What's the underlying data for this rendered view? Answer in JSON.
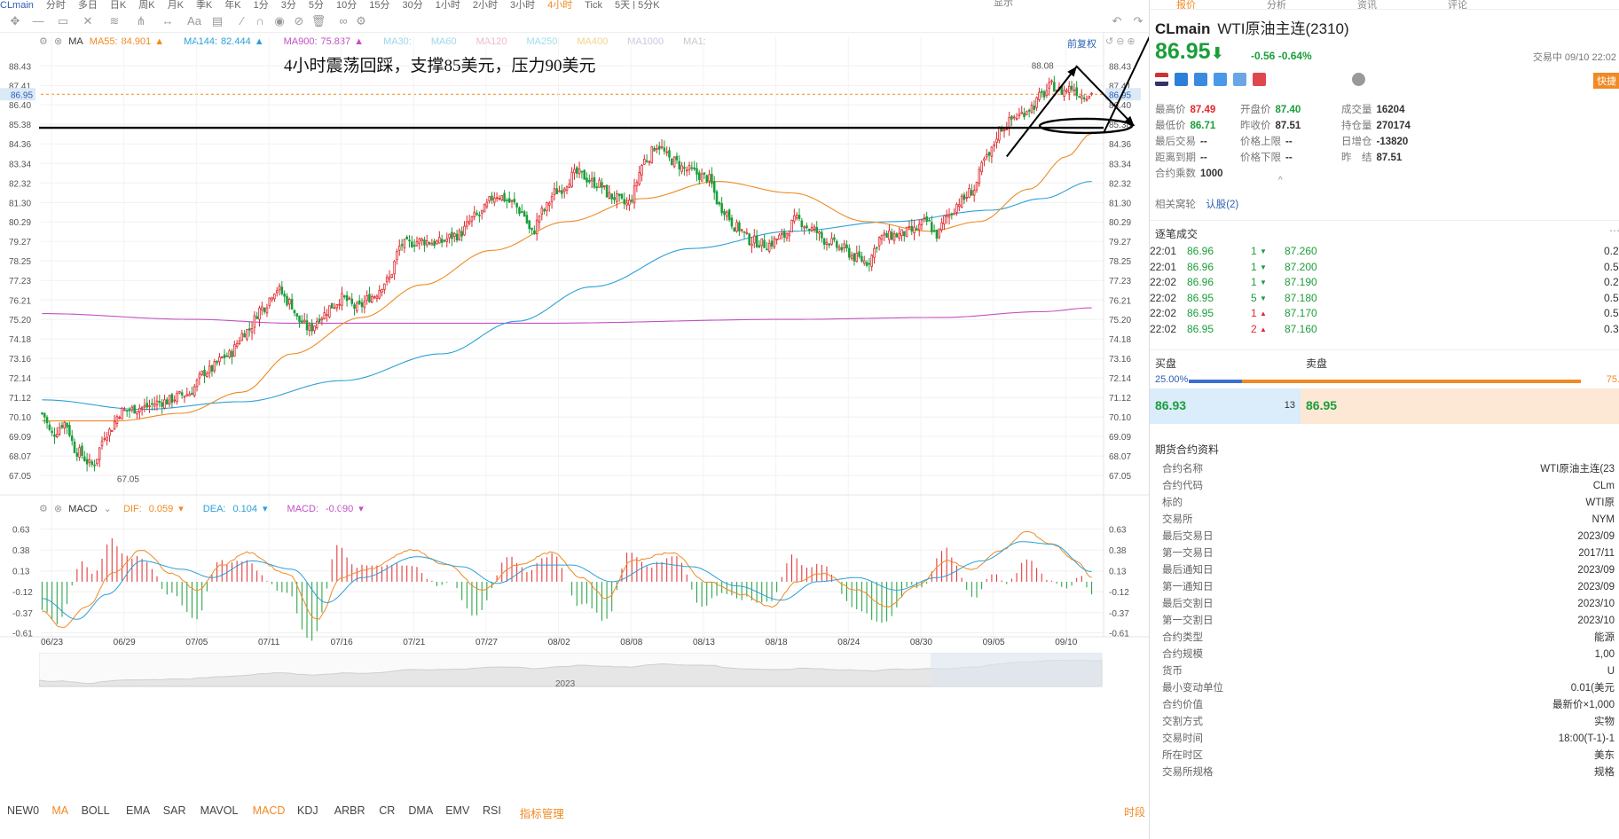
{
  "top_tabs": [
    "CLmain",
    "分时",
    "多日",
    "日K",
    "周K",
    "月K",
    "季K",
    "年K",
    "1分",
    "3分",
    "5分",
    "10分",
    "15分",
    "30分",
    "1小时",
    "2小时",
    "3小时",
    "4小时",
    "Tick",
    "5天 | 5分K"
  ],
  "top_active": "4小时",
  "display_label": "显示",
  "right_tabs": [
    "报价",
    "分析",
    "资讯",
    "评论"
  ],
  "annotation_text": "4小时震荡回踩，支撑85美元，压力90美元",
  "restore_label": "前复权",
  "ma_legend": {
    "name": "MA",
    "items": [
      {
        "label": "MA55:",
        "value": "84.901",
        "arrow": "▲",
        "color": "#f08a24"
      },
      {
        "label": "MA144:",
        "value": "82.444",
        "arrow": "▲",
        "color": "#2ba0d8"
      },
      {
        "label": "MA900:",
        "value": "75.837",
        "arrow": "▲",
        "color": "#c450c4"
      },
      {
        "label": "MA30:",
        "value": "",
        "arrow": "",
        "color": "#9fd6ec"
      },
      {
        "label": "MA60",
        "value": "",
        "arrow": "",
        "color": "#9fd6ec"
      },
      {
        "label": "MA120",
        "value": "",
        "arrow": "",
        "color": "#f0b6d0"
      },
      {
        "label": "MA250",
        "value": "",
        "arrow": "",
        "color": "#9fe0ec"
      },
      {
        "label": "MA400",
        "value": "",
        "arrow": "",
        "color": "#f6d28a"
      },
      {
        "label": "MA1000",
        "value": "",
        "arrow": "",
        "color": "#c8c8e0"
      },
      {
        "label": "MA1:",
        "value": "",
        "arrow": "",
        "color": "#c8c8c8"
      }
    ]
  },
  "macd_legend": {
    "name": "MACD",
    "items": [
      {
        "label": "DIF:",
        "value": "0.059",
        "color": "#f08a24"
      },
      {
        "label": "DEA:",
        "value": "0.104",
        "color": "#2ba0d8"
      },
      {
        "label": "MACD:",
        "value": "-0.090",
        "color": "#c450c4"
      }
    ]
  },
  "colors": {
    "up": "#e0282e",
    "down": "#1a9e3a",
    "ma55": "#f08a24",
    "ma144": "#2ba0d8",
    "ma900": "#c450c4"
  },
  "chart_data": [
    {
      "type": "candlestick",
      "title": "",
      "ylim": [
        66.5,
        89.0
      ],
      "y_ticks": [
        "88.43",
        "87.41",
        "86.40",
        "85.38",
        "84.36",
        "83.34",
        "82.32",
        "81.30",
        "80.29",
        "79.27",
        "78.25",
        "77.23",
        "76.21",
        "75.20",
        "74.18",
        "73.16",
        "72.14",
        "71.12",
        "70.10",
        "69.09",
        "68.07",
        "67.05"
      ],
      "current_price_tag": "86.95",
      "x_ticks": [
        "06/23",
        "06/29",
        "07/05",
        "07/11",
        "07/16",
        "07/21",
        "07/27",
        "08/02",
        "08/08",
        "08/13",
        "08/18",
        "08/24",
        "08/30",
        "09/05",
        "09/10"
      ],
      "close_anchors": [
        [
          0,
          70.3
        ],
        [
          4,
          69.2
        ],
        [
          9,
          69.8
        ],
        [
          14,
          68.3
        ],
        [
          20,
          67.6
        ],
        [
          26,
          69.3
        ],
        [
          32,
          70.4
        ],
        [
          40,
          70.6
        ],
        [
          48,
          70.9
        ],
        [
          58,
          71.3
        ],
        [
          66,
          72.5
        ],
        [
          74,
          73.3
        ],
        [
          82,
          74.6
        ],
        [
          88,
          75.8
        ],
        [
          94,
          76.8
        ],
        [
          99,
          76.1
        ],
        [
          103,
          75.1
        ],
        [
          107,
          74.7
        ],
        [
          112,
          75.4
        ],
        [
          116,
          75.9
        ],
        [
          120,
          76.3
        ],
        [
          126,
          75.8
        ],
        [
          132,
          76.4
        ],
        [
          138,
          77.2
        ],
        [
          144,
          79.1
        ],
        [
          152,
          79.3
        ],
        [
          158,
          79.2
        ],
        [
          166,
          79.6
        ],
        [
          174,
          80.6
        ],
        [
          182,
          81.7
        ],
        [
          188,
          81.3
        ],
        [
          192,
          80.8
        ],
        [
          196,
          79.7
        ],
        [
          200,
          80.8
        ],
        [
          206,
          81.9
        ],
        [
          214,
          82.8
        ],
        [
          222,
          82.3
        ],
        [
          228,
          81.6
        ],
        [
          234,
          81.2
        ],
        [
          242,
          83.6
        ],
        [
          246,
          84.3
        ],
        [
          252,
          83.5
        ],
        [
          258,
          83.0
        ],
        [
          266,
          82.6
        ],
        [
          272,
          81.0
        ],
        [
          278,
          80.0
        ],
        [
          284,
          79.3
        ],
        [
          290,
          79.1
        ],
        [
          296,
          79.5
        ],
        [
          302,
          80.4
        ],
        [
          308,
          79.9
        ],
        [
          314,
          79.3
        ],
        [
          320,
          78.9
        ],
        [
          326,
          78.4
        ],
        [
          330,
          78.2
        ],
        [
          336,
          79.5
        ],
        [
          342,
          79.6
        ],
        [
          348,
          79.8
        ],
        [
          354,
          80.3
        ],
        [
          358,
          79.6
        ],
        [
          362,
          80.6
        ],
        [
          368,
          81.4
        ],
        [
          372,
          81.9
        ],
        [
          378,
          83.6
        ],
        [
          384,
          85.2
        ],
        [
          390,
          85.8
        ],
        [
          396,
          86.3
        ],
        [
          400,
          86.9
        ],
        [
          404,
          87.4
        ],
        [
          408,
          87.1
        ],
        [
          412,
          87.3
        ],
        [
          416,
          86.9
        ],
        [
          420,
          87.0
        ]
      ],
      "candle_count": 421,
      "high_label": "88.08",
      "low_label": "67.05",
      "ma_series": [
        {
          "name": "MA55",
          "key": "ma55",
          "anchors": [
            [
              0,
              69.9
            ],
            [
              30,
              69.9
            ],
            [
              56,
              70.3
            ],
            [
              80,
              71.4
            ],
            [
              100,
              73.4
            ],
            [
              128,
              75.3
            ],
            [
              152,
              77.0
            ],
            [
              180,
              78.8
            ],
            [
              210,
              80.3
            ],
            [
              240,
              81.5
            ],
            [
              270,
              82.4
            ],
            [
              300,
              81.8
            ],
            [
              330,
              80.3
            ],
            [
              355,
              79.8
            ],
            [
              375,
              80.3
            ],
            [
              395,
              82.0
            ],
            [
              410,
              83.7
            ],
            [
              420,
              84.9
            ]
          ]
        },
        {
          "name": "MA144",
          "key": "ma144",
          "anchors": [
            [
              0,
              71.0
            ],
            [
              40,
              70.5
            ],
            [
              80,
              70.9
            ],
            [
              120,
              72.0
            ],
            [
              160,
              73.4
            ],
            [
              190,
              75.1
            ],
            [
              220,
              76.9
            ],
            [
              260,
              78.9
            ],
            [
              300,
              79.8
            ],
            [
              340,
              80.3
            ],
            [
              380,
              80.9
            ],
            [
              400,
              81.5
            ],
            [
              420,
              82.4
            ]
          ]
        },
        {
          "name": "MA900",
          "key": "ma900",
          "anchors": [
            [
              0,
              75.5
            ],
            [
              60,
              75.2
            ],
            [
              100,
              75.0
            ],
            [
              200,
              75.0
            ],
            [
              300,
              75.2
            ],
            [
              360,
              75.3
            ],
            [
              400,
              75.6
            ],
            [
              420,
              75.8
            ]
          ]
        }
      ],
      "annotations": {
        "support_line_price": 85.2,
        "arrow_path": [
          [
            386,
            83.7
          ],
          [
            414,
            88.4
          ],
          [
            437,
            85.3
          ]
        ],
        "ellipse_price": 85.3
      }
    },
    {
      "type": "macd",
      "title": "MACD",
      "ylim": [
        -0.68,
        0.7
      ],
      "y_ticks": [
        "0.63",
        "0.38",
        "0.13",
        "-0.12",
        "-0.37",
        "-0.61"
      ],
      "dif_anchors": [
        [
          0,
          -0.35
        ],
        [
          8,
          -0.55
        ],
        [
          18,
          -0.3
        ],
        [
          28,
          0.1
        ],
        [
          40,
          0.38
        ],
        [
          52,
          0.1
        ],
        [
          62,
          -0.1
        ],
        [
          72,
          0.2
        ],
        [
          82,
          0.35
        ],
        [
          98,
          0.1
        ],
        [
          110,
          -0.45
        ],
        [
          120,
          0.05
        ],
        [
          130,
          0.15
        ],
        [
          148,
          0.38
        ],
        [
          162,
          0.2
        ],
        [
          176,
          -0.1
        ],
        [
          190,
          0.2
        ],
        [
          204,
          0.35
        ],
        [
          216,
          0.05
        ],
        [
          226,
          -0.2
        ],
        [
          236,
          0.25
        ],
        [
          252,
          0.35
        ],
        [
          266,
          0.0
        ],
        [
          280,
          -0.15
        ],
        [
          292,
          -0.3
        ],
        [
          302,
          0.0
        ],
        [
          312,
          0.1
        ],
        [
          326,
          -0.1
        ],
        [
          338,
          -0.3
        ],
        [
          350,
          -0.05
        ],
        [
          362,
          0.25
        ],
        [
          372,
          0.15
        ],
        [
          384,
          0.38
        ],
        [
          394,
          0.6
        ],
        [
          404,
          0.45
        ],
        [
          414,
          0.25
        ],
        [
          420,
          0.05
        ]
      ],
      "dea_anchors": [
        [
          0,
          -0.2
        ],
        [
          14,
          -0.45
        ],
        [
          26,
          -0.15
        ],
        [
          40,
          0.25
        ],
        [
          56,
          0.15
        ],
        [
          68,
          0.05
        ],
        [
          84,
          0.25
        ],
        [
          100,
          0.15
        ],
        [
          114,
          -0.25
        ],
        [
          128,
          0.05
        ],
        [
          150,
          0.3
        ],
        [
          168,
          0.18
        ],
        [
          182,
          -0.02
        ],
        [
          198,
          0.2
        ],
        [
          212,
          0.2
        ],
        [
          228,
          0.0
        ],
        [
          246,
          0.22
        ],
        [
          260,
          0.18
        ],
        [
          278,
          -0.05
        ],
        [
          296,
          -0.22
        ],
        [
          310,
          0.0
        ],
        [
          326,
          0.05
        ],
        [
          342,
          -0.1
        ],
        [
          358,
          0.05
        ],
        [
          376,
          0.25
        ],
        [
          392,
          0.48
        ],
        [
          404,
          0.45
        ],
        [
          420,
          0.12
        ]
      ]
    }
  ],
  "bottom_x_label": "2023",
  "bottom_tabs": [
    {
      "label": "NEW0",
      "hl": false
    },
    {
      "label": "MA",
      "hl": true
    },
    {
      "label": "BOLL",
      "hl": false
    },
    {
      "label": "EMA",
      "hl": false
    },
    {
      "label": "SAR",
      "hl": false
    },
    {
      "label": "MAVOL",
      "hl": false
    },
    {
      "label": "MACD",
      "hl": true
    },
    {
      "label": "KDJ",
      "hl": false
    },
    {
      "label": "ARBR",
      "hl": false
    },
    {
      "label": "CR",
      "hl": false
    },
    {
      "label": "DMA",
      "hl": false
    },
    {
      "label": "EMV",
      "hl": false
    },
    {
      "label": "RSI",
      "hl": false
    },
    {
      "label": "指标管理",
      "hl": true
    }
  ],
  "bottom_right": "时段",
  "quote": {
    "symbol": "CLmain",
    "name": "WTI原油主连(2310)",
    "price": "86.95",
    "arrow": "⬇",
    "change": "-0.56",
    "change_pct": "-0.64%",
    "trade_time": "交易中 09/10 22:02",
    "quick_label": "快捷",
    "rows": [
      [
        {
          "l": "最高价",
          "v": "87.49",
          "c": "red"
        },
        {
          "l": "开盘价",
          "v": "87.40",
          "c": "green"
        },
        {
          "l": "成交量",
          "v": "16204",
          "c": ""
        }
      ],
      [
        {
          "l": "最低价",
          "v": "86.71",
          "c": "green"
        },
        {
          "l": "昨收价",
          "v": "87.51",
          "c": ""
        },
        {
          "l": "持仓量",
          "v": "270174",
          "c": ""
        }
      ],
      [
        {
          "l": "最后交易",
          "v": "--",
          "c": ""
        },
        {
          "l": "价格上限",
          "v": "--",
          "c": ""
        },
        {
          "l": "日增仓",
          "v": "-13820",
          "c": ""
        }
      ],
      [
        {
          "l": "距离到期",
          "v": "--",
          "c": ""
        },
        {
          "l": "价格下限",
          "v": "--",
          "c": ""
        },
        {
          "l": "昨　结",
          "v": "87.51",
          "c": ""
        }
      ],
      [
        {
          "l": "合约乘数",
          "v": "1000",
          "c": ""
        }
      ]
    ],
    "related_label": "相关窝轮",
    "related_link": "认股(2)"
  },
  "ticks": {
    "title": "逐笔成交",
    "rows": [
      {
        "time": "22:01",
        "price": "86.96",
        "qty": "1",
        "dir": "down",
        "p2": "87.260",
        "last": "0.2"
      },
      {
        "time": "22:01",
        "price": "86.96",
        "qty": "1",
        "dir": "down",
        "p2": "87.200",
        "last": "0.5"
      },
      {
        "time": "22:02",
        "price": "86.96",
        "qty": "1",
        "dir": "down",
        "p2": "87.190",
        "last": "0.2"
      },
      {
        "time": "22:02",
        "price": "86.95",
        "qty": "5",
        "dir": "down",
        "p2": "87.180",
        "last": "0.5"
      },
      {
        "time": "22:02",
        "price": "86.95",
        "qty": "1",
        "dir": "up",
        "p2": "87.170",
        "last": "0.5"
      },
      {
        "time": "22:02",
        "price": "86.95",
        "qty": "2",
        "dir": "up",
        "p2": "87.160",
        "last": "0.3"
      }
    ]
  },
  "orderbook": {
    "buy_label": "买盘",
    "sell_label": "卖盘",
    "buy_pct": "25.00%",
    "sell_pct": "75.",
    "buy_price": "86.93",
    "mid_qty": "13",
    "sell_price": "86.95"
  },
  "contract": {
    "title": "期货合约资料",
    "rows": [
      {
        "k": "合约名称",
        "v": "WTI原油主连(23"
      },
      {
        "k": "合约代码",
        "v": "CLm"
      },
      {
        "k": "标的",
        "v": "WTI原"
      },
      {
        "k": "交易所",
        "v": "NYM"
      },
      {
        "k": "最后交易日",
        "v": "2023/09"
      },
      {
        "k": "第一交易日",
        "v": "2017/11"
      },
      {
        "k": "最后通知日",
        "v": "2023/09"
      },
      {
        "k": "第一通知日",
        "v": "2023/09"
      },
      {
        "k": "最后交割日",
        "v": "2023/10"
      },
      {
        "k": "第一交割日",
        "v": "2023/10"
      },
      {
        "k": "合约类型",
        "v": "能源"
      },
      {
        "k": "合约规模",
        "v": "1,00"
      },
      {
        "k": "货币",
        "v": "U"
      },
      {
        "k": "最小变动单位",
        "v": "0.01(美元"
      },
      {
        "k": "合约价值",
        "v": "最新价×1,000"
      },
      {
        "k": "交割方式",
        "v": "实物"
      },
      {
        "k": "交易时间",
        "v": "18:00(T-1)-1"
      },
      {
        "k": "所在时区",
        "v": "美东"
      },
      {
        "k": "交易所规格",
        "v": "规格"
      }
    ]
  }
}
